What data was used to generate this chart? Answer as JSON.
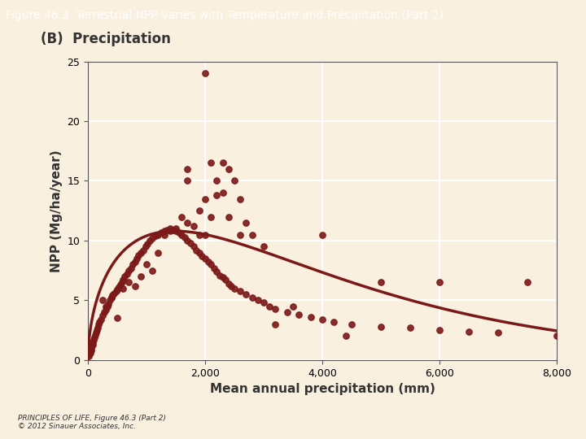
{
  "title": "Figure 46.3  Terrestrial NPP Varies with Temperature and Precipitation (Part 2)",
  "title_bg_color": "#7B3B2A",
  "title_text_color": "#FFFFFF",
  "panel_label": "(B)  Precipitation",
  "xlabel": "Mean annual precipitation (mm)",
  "ylabel": "NPP (Mg/ha/year)",
  "xlim": [
    0,
    8000
  ],
  "ylim": [
    0,
    25
  ],
  "xticks": [
    0,
    2000,
    4000,
    6000,
    8000
  ],
  "yticks": [
    0,
    5,
    10,
    15,
    20,
    25
  ],
  "bg_color": "#FAF0E0",
  "plot_bg_color": "#FAF0E0",
  "dot_color": "#7B1818",
  "curve_color": "#7B1818",
  "grid_color": "#FFFFFF",
  "caption": "PRINCIPLES OF LIFE, Figure 46.3 (Part 2)\n© 2012 Sinauer Associates, Inc.",
  "scatter_x": [
    20,
    30,
    40,
    50,
    60,
    70,
    80,
    90,
    100,
    110,
    120,
    140,
    150,
    160,
    180,
    200,
    220,
    250,
    280,
    300,
    330,
    350,
    380,
    400,
    420,
    450,
    480,
    500,
    530,
    560,
    580,
    600,
    630,
    660,
    700,
    730,
    760,
    800,
    830,
    860,
    900,
    940,
    980,
    1020,
    1060,
    1100,
    1150,
    1200,
    1250,
    1300,
    1350,
    1400,
    1450,
    1500,
    1550,
    1600,
    1650,
    1700,
    1750,
    1800,
    1850,
    1900,
    1950,
    2000,
    2050,
    2100,
    2150,
    2200,
    2250,
    2300,
    2350,
    2400,
    2450,
    2500,
    2600,
    2700,
    2800,
    2900,
    3000,
    3100,
    3200,
    3400,
    3600,
    3800,
    4000,
    4200,
    4500,
    5000,
    5500,
    6000,
    6500,
    7000,
    8000
  ],
  "scatter_y": [
    0.3,
    0.5,
    0.6,
    0.8,
    1.0,
    1.2,
    1.3,
    1.5,
    1.7,
    1.9,
    2.1,
    2.3,
    2.5,
    2.7,
    3.0,
    3.2,
    3.4,
    3.7,
    4.0,
    4.2,
    4.5,
    4.7,
    5.0,
    5.2,
    5.4,
    5.6,
    5.8,
    5.9,
    6.1,
    6.3,
    6.5,
    6.7,
    7.0,
    7.2,
    7.5,
    7.7,
    8.0,
    8.2,
    8.5,
    8.8,
    9.0,
    9.2,
    9.5,
    9.7,
    10.0,
    10.2,
    10.4,
    10.5,
    10.7,
    10.8,
    10.9,
    11.0,
    10.9,
    10.8,
    10.7,
    10.5,
    10.3,
    10.0,
    9.8,
    9.5,
    9.2,
    9.0,
    8.7,
    8.5,
    8.2,
    8.0,
    7.7,
    7.4,
    7.1,
    6.9,
    6.7,
    6.4,
    6.2,
    6.0,
    5.8,
    5.5,
    5.2,
    5.0,
    4.8,
    4.5,
    4.3,
    4.0,
    3.8,
    3.6,
    3.4,
    3.2,
    3.0,
    2.8,
    2.7,
    2.5,
    2.4,
    2.3,
    2.0
  ],
  "extra_scatter_x": [
    250,
    300,
    400,
    500,
    600,
    700,
    800,
    900,
    1000,
    1100,
    1200,
    1300,
    1400,
    1500,
    1600,
    1700,
    1800,
    1900,
    2000,
    2100,
    2200,
    2300,
    2400,
    2500,
    2600,
    2700,
    2800,
    3000,
    3500,
    4000,
    5000,
    6000,
    7500
  ],
  "extra_scatter_y": [
    5.0,
    4.5,
    5.2,
    3.5,
    6.0,
    6.5,
    6.2,
    7.0,
    8.0,
    7.5,
    9.0,
    10.5,
    10.8,
    11.0,
    12.0,
    11.5,
    11.2,
    10.5,
    10.5,
    12.0,
    13.8,
    16.5,
    16.0,
    15.0,
    13.5,
    11.5,
    10.5,
    9.5,
    4.5,
    10.5,
    6.5,
    6.5,
    6.5
  ],
  "outlier_x": [
    2000,
    1700,
    1700,
    2100,
    2200,
    2000,
    1900,
    2300,
    2400,
    2600,
    3200,
    4400
  ],
  "outlier_y": [
    24.0,
    16.0,
    15.0,
    16.5,
    15.0,
    13.5,
    12.5,
    14.0,
    12.0,
    10.5,
    3.0,
    2.0
  ]
}
